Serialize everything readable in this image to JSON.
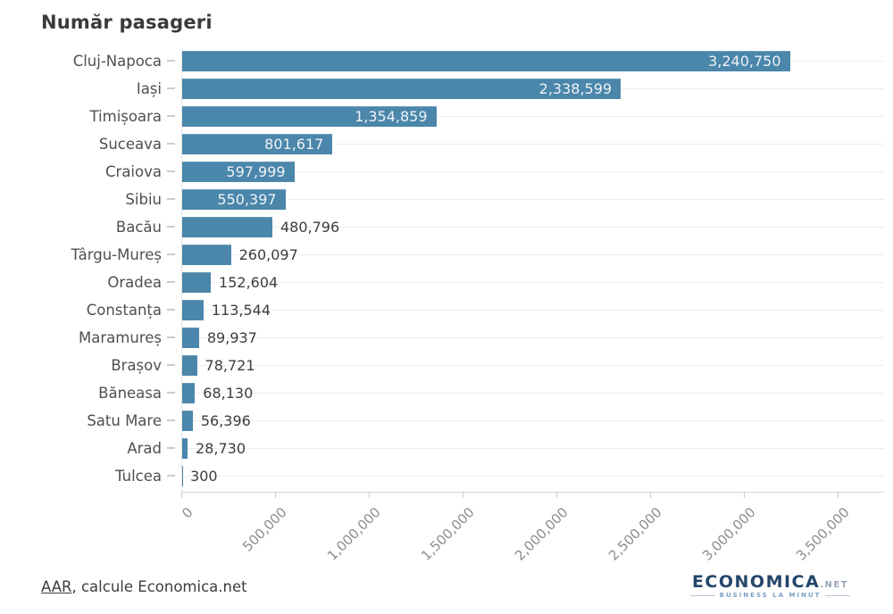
{
  "title": "Număr pasageri",
  "chart_data": {
    "type": "bar",
    "orientation": "horizontal",
    "title": "Număr pasageri",
    "xlabel": "",
    "ylabel": "",
    "categories": [
      "Cluj-Napoca",
      "Iași",
      "Timișoara",
      "Suceava",
      "Craiova",
      "Sibiu",
      "Bacău",
      "Târgu-Mureș",
      "Oradea",
      "Constanța",
      "Maramureș",
      "Brașov",
      "Băneasa",
      "Satu Mare",
      "Arad",
      "Tulcea"
    ],
    "values": [
      3240750,
      2338599,
      1354859,
      801617,
      597999,
      550397,
      480796,
      260097,
      152604,
      113544,
      89937,
      78721,
      68130,
      56396,
      28730,
      300
    ],
    "value_labels": [
      "3,240,750",
      "2,338,599",
      "1,354,859",
      "801,617",
      "597,999",
      "550,397",
      "480,796",
      "260,097",
      "152,604",
      "113,544",
      "89,937",
      "78,721",
      "68,130",
      "56,396",
      "28,730",
      "300"
    ],
    "xlim": [
      0,
      3500000
    ],
    "x_tick_values": [
      0,
      500000,
      1000000,
      1500000,
      2000000,
      2500000,
      3000000,
      3500000
    ],
    "x_tick_labels": [
      "0",
      "500,000",
      "1,000,000",
      "1,500,000",
      "2,000,000",
      "2,500,000",
      "3,000,000",
      "3,500,000"
    ],
    "grid": "horizontal category gridlines",
    "legend": "none",
    "bar_color": "#4b86ab"
  },
  "footer": {
    "source_link": "AAR",
    "source_suffix": ", calcule Economica.net"
  },
  "logo": {
    "name": "ECONOMICA",
    "tld": ".NET",
    "tagline": "BUSINESS LA MINUT"
  },
  "colors": {
    "bar": "#4b86ab",
    "value_inside": "#eef3f6",
    "value_outside": "#3d3d3d",
    "category_label": "#4f4f4f",
    "tick_label": "#8c8c8c",
    "gridline": "#ececec",
    "background": "#ffffff",
    "logo_navy": "#24466b",
    "logo_light_blue": "#7c9fc4"
  }
}
